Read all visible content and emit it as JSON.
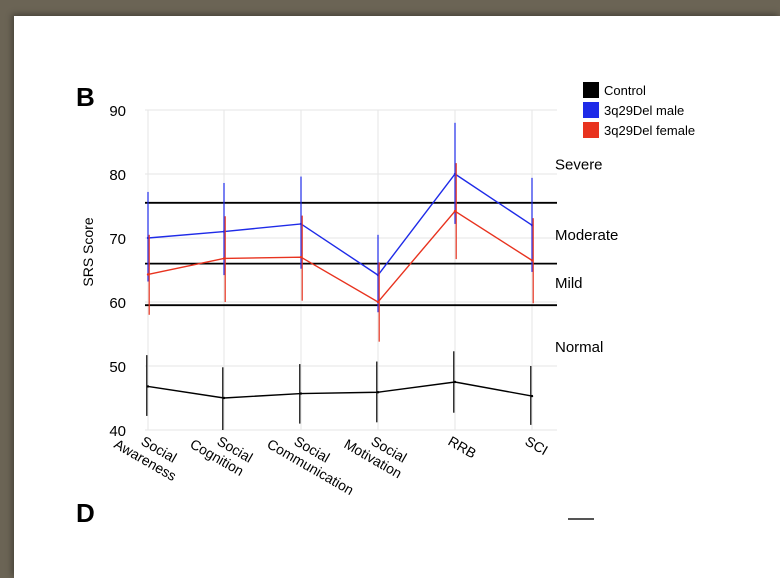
{
  "panel_label": "B",
  "next_panel_label": "D",
  "colors": {
    "control": "#000000",
    "male": "#1f2be8",
    "female": "#e8331f",
    "grid": "#e6e6e6"
  },
  "chart_data": {
    "type": "line",
    "ylabel": "SRS Score",
    "ylim": [
      40,
      90
    ],
    "yticks": [
      40,
      50,
      60,
      70,
      80,
      90
    ],
    "grid": true,
    "legend_position": "top-right",
    "categories": [
      "Social Awareness",
      "Social Cognition",
      "Social Communication",
      "Social Motivation",
      "RRB",
      "SCI"
    ],
    "category_labels": [
      [
        "Social",
        "Awareness"
      ],
      [
        "Social",
        "Cognition"
      ],
      [
        "Social",
        "Communication"
      ],
      [
        "Social",
        "Motivation"
      ],
      [
        "RRB"
      ],
      [
        "SCI"
      ]
    ],
    "series": [
      {
        "name": "Control",
        "color": "#000000",
        "values": [
          46.8,
          45.0,
          45.7,
          45.9,
          47.5,
          45.3
        ],
        "err_low": [
          42.2,
          40.0,
          41.0,
          41.2,
          42.7,
          40.8
        ],
        "err_high": [
          51.7,
          49.8,
          50.3,
          50.7,
          52.3,
          50.0
        ]
      },
      {
        "name": "3q29Del male",
        "color": "#1f2be8",
        "values": [
          70.0,
          71.0,
          72.2,
          64.2,
          80.0,
          72.0
        ],
        "err_low": [
          63.2,
          64.2,
          65.2,
          58.4,
          72.2,
          64.7
        ],
        "err_high": [
          77.2,
          78.6,
          79.6,
          70.5,
          88.0,
          79.4
        ]
      },
      {
        "name": "3q29Del female",
        "color": "#e8331f",
        "values": [
          64.3,
          66.8,
          67.0,
          60.0,
          74.2,
          66.5
        ],
        "err_low": [
          58.0,
          60.0,
          60.2,
          53.8,
          66.7,
          59.8
        ],
        "err_high": [
          70.5,
          73.4,
          73.5,
          66.2,
          81.7,
          73.1
        ]
      }
    ],
    "thresholds": [
      {
        "value": 75.5
      },
      {
        "value": 66.0
      },
      {
        "value": 59.5
      }
    ],
    "severity_labels": [
      {
        "text": "Severe",
        "value": 81.5
      },
      {
        "text": "Moderate",
        "value": 70.5
      },
      {
        "text": "Mild",
        "value": 63.0
      },
      {
        "text": "Normal",
        "value": 53.0
      }
    ]
  }
}
